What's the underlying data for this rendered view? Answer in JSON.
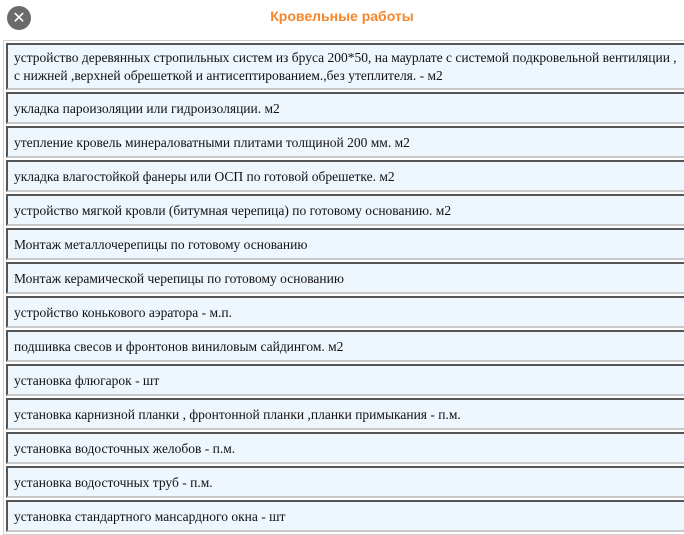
{
  "header": {
    "title": "Кровельные работы",
    "close_icon": "close-icon"
  },
  "items": [
    "устройство деревянных стропильных систем из бруса 200*50, на маурлате с системой подкровельной вентиляции , с нижней ,верхней обрешеткой  и антисептированием.,без утеплителя. - м2",
    "укладка пароизоляции или гидроизоляции. м2",
    "утепление кровель минераловатными плитами толщиной 200 мм. м2",
    "укладка влагостойкой фанеры или ОСП по готовой обрешетке. м2",
    "устройство мягкой кровли (битумная черепица) по готовому основанию. м2",
    "Монтаж металлочерепицы по готовому основанию",
    "Монтаж керамической черепицы по готовому основанию",
    "устройство конькового аэратора - м.п.",
    "подшивка свесов и фронтонов виниловым сайдингом. м2",
    "установка флюгарок - шт",
    "установка карнизной планки , фронтонной планки ,планки примыкания - п.м.",
    "установка водосточных желобов - п.м.",
    "установка водосточных труб - п.м.",
    "установка стандартного мансардного окна - шт"
  ]
}
